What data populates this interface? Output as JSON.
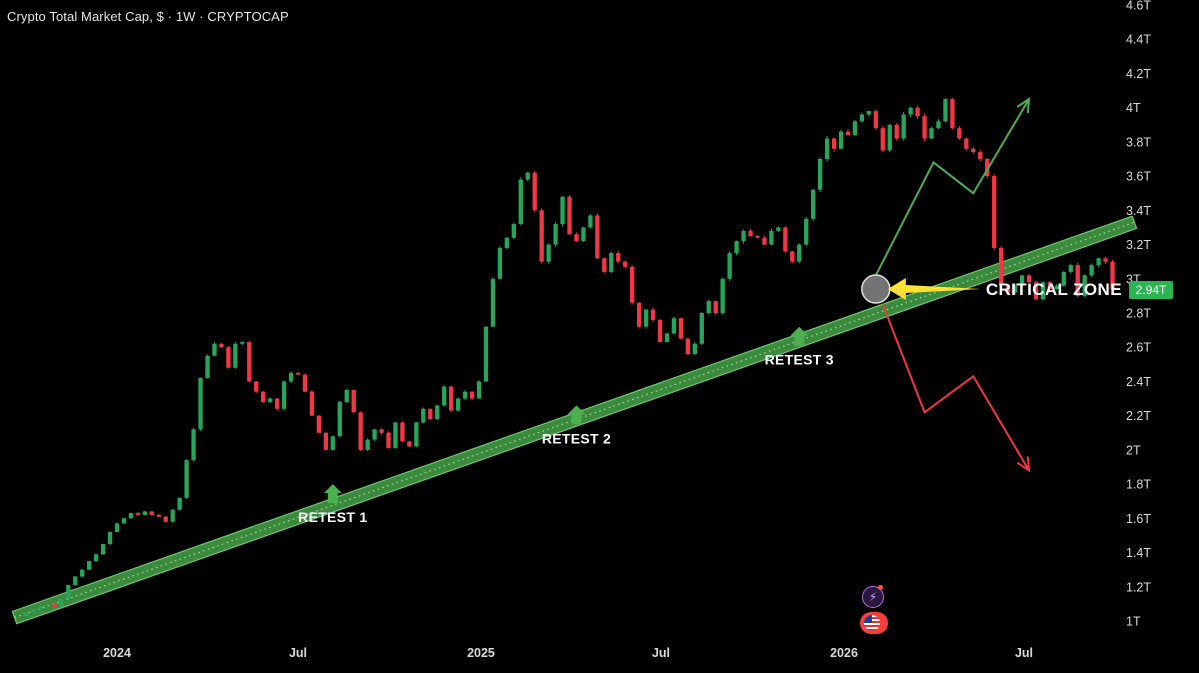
{
  "header": {
    "title": "Crypto Total Market Cap, $ · 1W · CRYPTOCAP"
  },
  "price_badge": {
    "value": "2.94T",
    "color": "#2ab550"
  },
  "icons": {
    "bolt": "bolt-icon",
    "flag": "us-flag-icon"
  },
  "chart_data": {
    "type": "candlestick",
    "unit": "USD market cap (trillions)",
    "y_ticks": [
      {
        "v": 4.6,
        "label": "4.6T"
      },
      {
        "v": 4.4,
        "label": "4.4T"
      },
      {
        "v": 4.2,
        "label": "4.2T"
      },
      {
        "v": 4.0,
        "label": "4T"
      },
      {
        "v": 3.8,
        "label": "3.8T"
      },
      {
        "v": 3.6,
        "label": "3.6T"
      },
      {
        "v": 3.4,
        "label": "3.4T"
      },
      {
        "v": 3.2,
        "label": "3.2T"
      },
      {
        "v": 3.0,
        "label": "3T"
      },
      {
        "v": 2.8,
        "label": "2.8T"
      },
      {
        "v": 2.6,
        "label": "2.6T"
      },
      {
        "v": 2.4,
        "label": "2.4T"
      },
      {
        "v": 2.2,
        "label": "2.2T"
      },
      {
        "v": 2.0,
        "label": "2T"
      },
      {
        "v": 1.8,
        "label": "1.8T"
      },
      {
        "v": 1.6,
        "label": "1.6T"
      },
      {
        "v": 1.4,
        "label": "1.4T"
      },
      {
        "v": 1.2,
        "label": "1.2T"
      },
      {
        "v": 1.0,
        "label": "1T"
      }
    ],
    "x_ticks": [
      {
        "date": "2024-01-01",
        "label": "2024"
      },
      {
        "date": "2024-07-01",
        "label": "Jul"
      },
      {
        "date": "2025-01-01",
        "label": "2025"
      },
      {
        "date": "2025-07-01",
        "label": "Jul"
      },
      {
        "date": "2026-01-01",
        "label": "2026"
      },
      {
        "date": "2026-07-01",
        "label": "Jul"
      }
    ],
    "x_range": [
      "2023-09-20",
      "2026-10-20"
    ],
    "y_range": [
      0.95,
      4.62
    ],
    "colors": {
      "up": "#26a65b",
      "down": "#f23645",
      "trendline": "#4caf50",
      "arrow_up": "#4caf50",
      "arrow_down": "#f23645",
      "pointer": "#ffe135"
    },
    "series_close": [
      1.05,
      1.07,
      1.09,
      1.1,
      1.08,
      1.13,
      1.21,
      1.26,
      1.3,
      1.35,
      1.39,
      1.45,
      1.52,
      1.57,
      1.6,
      1.63,
      1.62,
      1.64,
      1.62,
      1.61,
      1.58,
      1.65,
      1.72,
      1.94,
      2.12,
      2.42,
      2.55,
      2.62,
      2.6,
      2.48,
      2.62,
      2.63,
      2.4,
      2.34,
      2.28,
      2.3,
      2.24,
      2.4,
      2.45,
      2.44,
      2.34,
      2.2,
      2.1,
      2.0,
      2.08,
      2.28,
      2.35,
      2.22,
      2.0,
      2.06,
      2.12,
      2.1,
      2.01,
      2.16,
      2.05,
      2.02,
      2.16,
      2.24,
      2.18,
      2.26,
      2.37,
      2.23,
      2.3,
      2.34,
      2.3,
      2.4,
      2.72,
      3.0,
      3.18,
      3.24,
      3.32,
      3.58,
      3.62,
      3.4,
      3.1,
      3.2,
      3.32,
      3.48,
      3.26,
      3.22,
      3.3,
      3.37,
      3.12,
      3.04,
      3.15,
      3.1,
      3.07,
      2.86,
      2.72,
      2.82,
      2.76,
      2.63,
      2.68,
      2.77,
      2.65,
      2.56,
      2.62,
      2.8,
      2.87,
      2.8,
      3.0,
      3.15,
      3.22,
      3.28,
      3.25,
      3.24,
      3.2,
      3.28,
      3.3,
      3.16,
      3.1,
      3.2,
      3.35,
      3.52,
      3.7,
      3.82,
      3.76,
      3.86,
      3.84,
      3.92,
      3.96,
      3.98,
      3.88,
      3.75,
      3.9,
      3.82,
      3.96,
      4.0,
      3.95,
      3.82,
      3.88,
      3.92,
      4.05,
      3.88,
      3.82,
      3.76,
      3.74,
      3.7,
      3.6,
      3.18,
      2.96,
      2.92,
      2.96,
      3.02,
      2.98,
      2.88,
      2.98,
      2.94,
      2.96,
      3.04,
      3.08,
      2.9,
      3.02,
      3.08,
      3.12,
      3.1,
      2.94
    ],
    "trendline": {
      "from": {
        "date": "2023-09-20",
        "value": 1.02
      },
      "to": {
        "date": "2026-10-20",
        "value": 3.33
      }
    },
    "annotations": [
      {
        "label": "RETEST 1",
        "date": "2024-08-05",
        "value": 1.8
      },
      {
        "label": "RETEST 2",
        "date": "2025-04-07",
        "value": 2.26
      },
      {
        "label": "RETEST 3",
        "date": "2025-11-17",
        "value": 2.72
      }
    ],
    "critical_zone": {
      "label": "CRITICAL ZONE",
      "date": "2026-02-02",
      "value": 2.94
    },
    "scenarios": {
      "bullish": [
        {
          "date": "2026-02-02",
          "value": 3.02
        },
        {
          "date": "2026-04-01",
          "value": 3.68
        },
        {
          "date": "2026-05-11",
          "value": 3.5
        },
        {
          "date": "2026-07-06",
          "value": 4.05
        }
      ],
      "bearish": [
        {
          "date": "2026-02-09",
          "value": 2.85
        },
        {
          "date": "2026-03-23",
          "value": 2.22
        },
        {
          "date": "2026-05-11",
          "value": 2.43
        },
        {
          "date": "2026-07-06",
          "value": 1.88
        }
      ]
    }
  }
}
